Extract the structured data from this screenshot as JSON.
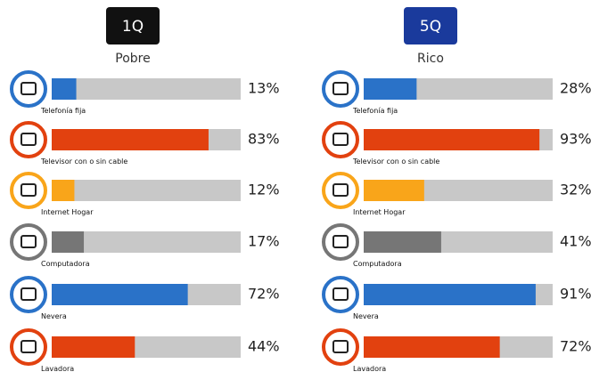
{
  "chart_data": [
    {
      "type": "bar",
      "title": "1Q",
      "subtitle": "Pobre",
      "badge_color": "#111111",
      "categories": [
        "Telefonía fija",
        "Televisor con o sin cable",
        "Internet Hogar",
        "Computadora",
        "Nevera",
        "Lavadora"
      ],
      "values": [
        13,
        83,
        12,
        17,
        72,
        44
      ],
      "value_labels": [
        "13%",
        "83%",
        "12%",
        "17%",
        "72%",
        "44%"
      ],
      "colors": [
        "#2a72c8",
        "#e2410f",
        "#f9a51a",
        "#767676",
        "#2a72c8",
        "#e2410f"
      ],
      "xlim": [
        0,
        100
      ]
    },
    {
      "type": "bar",
      "title": "5Q",
      "subtitle": "Rico",
      "badge_color": "#1a3a9c",
      "categories": [
        "Telefonía fija",
        "Televisor con o sin cable",
        "Internet Hogar",
        "Computadora",
        "Nevera",
        "Lavadora"
      ],
      "values": [
        28,
        93,
        32,
        41,
        91,
        72
      ],
      "value_labels": [
        "28%",
        "93%",
        "32%",
        "41%",
        "91%",
        "72%"
      ],
      "colors": [
        "#2a72c8",
        "#e2410f",
        "#f9a51a",
        "#767676",
        "#2a72c8",
        "#e2410f"
      ],
      "xlim": [
        0,
        100
      ]
    }
  ]
}
